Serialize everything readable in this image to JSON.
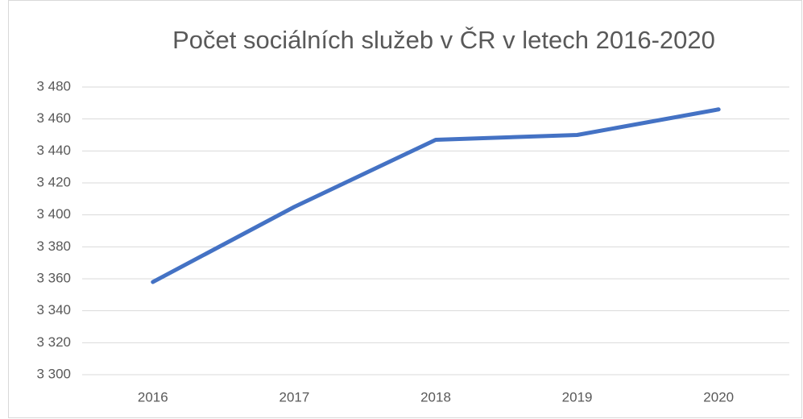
{
  "chart_data": {
    "type": "line",
    "title": "Počet sociálních služeb v ČR v letech 2016-2020",
    "categories": [
      "2016",
      "2017",
      "2018",
      "2019",
      "2020"
    ],
    "series": [
      {
        "name": null,
        "color": "#4472c4",
        "values": [
          3358,
          3405,
          3447,
          3450,
          3466
        ]
      }
    ],
    "ylim": [
      3300,
      3480
    ],
    "yticks": [
      {
        "value": 3300,
        "label": "3 300"
      },
      {
        "value": 3320,
        "label": "3 320"
      },
      {
        "value": 3340,
        "label": "3 340"
      },
      {
        "value": 3360,
        "label": "3 360"
      },
      {
        "value": 3380,
        "label": "3 380"
      },
      {
        "value": 3400,
        "label": "3 400"
      },
      {
        "value": 3420,
        "label": "3 420"
      },
      {
        "value": 3440,
        "label": "3 440"
      },
      {
        "value": 3460,
        "label": "3 460"
      },
      {
        "value": 3480,
        "label": "3 480"
      }
    ],
    "grid": true
  }
}
